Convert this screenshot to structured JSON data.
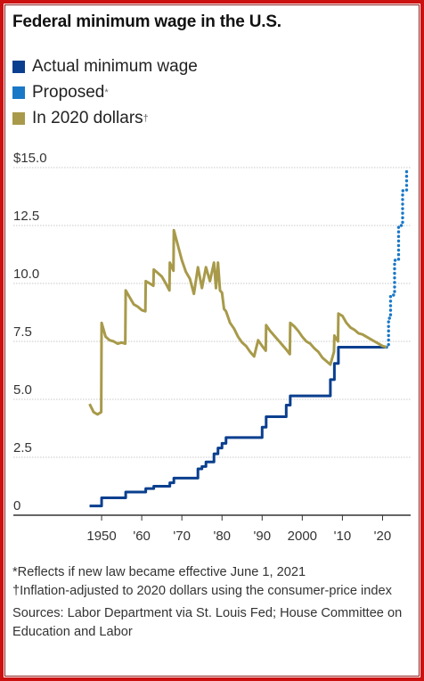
{
  "title": "Federal minimum wage in the U.S.",
  "legend": [
    {
      "label": "Actual minimum wage",
      "mark": "",
      "color": "#0a3f8f"
    },
    {
      "label": "Proposed",
      "mark": "*",
      "color": "#1a78c8"
    },
    {
      "label": "In 2020 dollars",
      "mark": "†",
      "color": "#a89a4a"
    }
  ],
  "notes": {
    "proposed": "*Reflects if new law became effective June 1, 2021",
    "inflation": "†Inflation-adjusted to 2020 dollars using the consumer-price index",
    "sources": "Sources: Labor Department via St. Louis Fed; House Committee on Education and Labor"
  },
  "chart_data": {
    "type": "line",
    "xlim": [
      1938,
      2027
    ],
    "ylim": [
      0,
      15
    ],
    "grid": true,
    "y_ticks": [
      {
        "value": 0,
        "label": "0"
      },
      {
        "value": 2.5,
        "label": "2.5"
      },
      {
        "value": 5,
        "label": "5.0"
      },
      {
        "value": 7.5,
        "label": "7.5"
      },
      {
        "value": 10,
        "label": "10.0"
      },
      {
        "value": 12.5,
        "label": "12.5"
      },
      {
        "value": 15,
        "label": "$15.0"
      }
    ],
    "x_ticks": [
      {
        "value": 1950,
        "label": "1950"
      },
      {
        "value": 1960,
        "label": "'60"
      },
      {
        "value": 1970,
        "label": "'70"
      },
      {
        "value": 1980,
        "label": "'80"
      },
      {
        "value": 1990,
        "label": "'90"
      },
      {
        "value": 2000,
        "label": "2000"
      },
      {
        "value": 2010,
        "label": "'10"
      },
      {
        "value": 2020,
        "label": "'20"
      }
    ],
    "series": [
      {
        "name": "Actual minimum wage",
        "color": "#0a3f8f",
        "style": "step",
        "x": [
          1947,
          1950,
          1956,
          1961,
          1963,
          1967,
          1968,
          1974,
          1975,
          1976,
          1978,
          1979,
          1980,
          1981,
          1990,
          1991,
          1996,
          1997,
          2007,
          2008,
          2009,
          2021
        ],
        "y": [
          0.4,
          0.75,
          1.0,
          1.15,
          1.25,
          1.4,
          1.6,
          2.0,
          2.1,
          2.3,
          2.65,
          2.9,
          3.1,
          3.35,
          3.8,
          4.25,
          4.75,
          5.15,
          5.85,
          6.55,
          7.25,
          7.25
        ]
      },
      {
        "name": "Proposed",
        "color": "#1a78c8",
        "style": "step-dotted",
        "x": [
          2021,
          2021.5,
          2022,
          2023,
          2024,
          2025,
          2026
        ],
        "y": [
          7.25,
          8.5,
          9.5,
          11.0,
          12.5,
          14.0,
          15.0
        ]
      },
      {
        "name": "In 2020 dollars",
        "color": "#a89a4a",
        "style": "line",
        "x": [
          1947,
          1948,
          1949,
          1949.9,
          1950,
          1951,
          1952,
          1953,
          1954,
          1955,
          1955.9,
          1956,
          1957,
          1958,
          1959,
          1960,
          1960.9,
          1961,
          1962,
          1962.9,
          1963,
          1964,
          1965,
          1966,
          1966.9,
          1967,
          1967.9,
          1968,
          1969,
          1970,
          1971,
          1972,
          1973,
          1974,
          1975,
          1976,
          1977,
          1978,
          1978.5,
          1979,
          1979.5,
          1980,
          1980.5,
          1981,
          1982,
          1983,
          1984,
          1985,
          1986,
          1987,
          1988,
          1989,
          1990,
          1990.9,
          1991,
          1992,
          1993,
          1994,
          1995,
          1996,
          1996.9,
          1997,
          1998,
          1999,
          2000,
          2001,
          2002,
          2003,
          2004,
          2005,
          2006,
          2007,
          2007.9,
          2008,
          2008.9,
          2009,
          2010,
          2011,
          2012,
          2013,
          2014,
          2015,
          2016,
          2017,
          2018,
          2019,
          2020,
          2021
        ],
        "y": [
          4.8,
          4.45,
          4.35,
          4.45,
          8.3,
          7.7,
          7.55,
          7.5,
          7.4,
          7.45,
          7.4,
          9.7,
          9.4,
          9.1,
          9.0,
          8.85,
          8.8,
          10.1,
          10.0,
          9.9,
          10.6,
          10.45,
          10.3,
          10.0,
          9.7,
          10.9,
          10.55,
          12.3,
          11.65,
          11.0,
          10.5,
          10.2,
          9.55,
          10.7,
          9.8,
          10.7,
          10.1,
          10.9,
          9.8,
          10.9,
          9.7,
          9.6,
          8.9,
          8.8,
          8.3,
          8.05,
          7.7,
          7.45,
          7.3,
          7.05,
          6.85,
          7.55,
          7.3,
          7.1,
          8.2,
          7.95,
          7.75,
          7.55,
          7.35,
          7.15,
          6.95,
          8.3,
          8.15,
          7.95,
          7.7,
          7.5,
          7.4,
          7.2,
          7.05,
          6.8,
          6.65,
          6.5,
          7.05,
          7.75,
          7.5,
          8.7,
          8.6,
          8.3,
          8.1,
          8.0,
          7.85,
          7.8,
          7.7,
          7.6,
          7.5,
          7.4,
          7.3,
          7.25
        ]
      }
    ]
  }
}
